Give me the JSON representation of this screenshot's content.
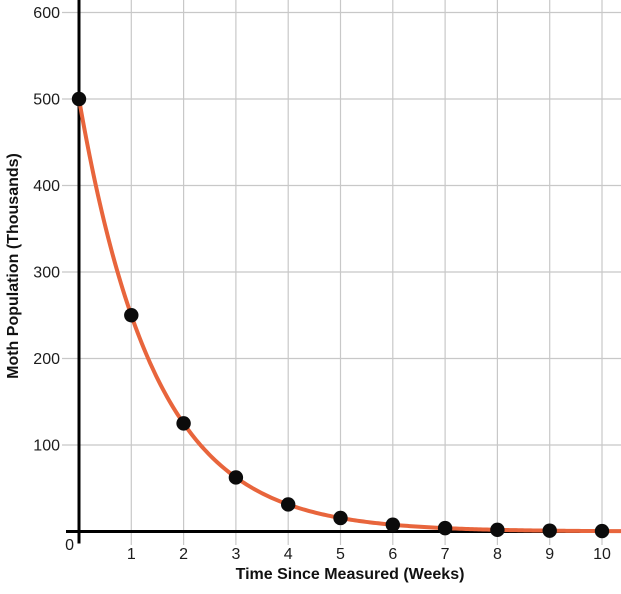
{
  "chart_data": {
    "type": "line",
    "title": "",
    "xlabel": "Time Since Measured (Weeks)",
    "ylabel": "Moth Population (Thousands)",
    "x": [
      0,
      1,
      2,
      3,
      4,
      5,
      6,
      7,
      8,
      9,
      10
    ],
    "y": [
      500,
      250,
      125,
      62.5,
      31.25,
      15.63,
      7.81,
      3.91,
      1.95,
      0.98,
      0.49
    ],
    "curve": {
      "kind": "exponential-decay",
      "initial_value": 500,
      "decay_ratio_per_week": 0.5
    },
    "x_tick_labels": [
      "1",
      "2",
      "3",
      "4",
      "5",
      "6",
      "7",
      "8",
      "9",
      "10"
    ],
    "x_tick_values": [
      1,
      2,
      3,
      4,
      5,
      6,
      7,
      8,
      9,
      10
    ],
    "y_tick_labels": [
      "100",
      "200",
      "300",
      "400",
      "500",
      "600"
    ],
    "y_tick_values": [
      100,
      200,
      300,
      400,
      500,
      600
    ],
    "origin_label": "0",
    "xlim": [
      0,
      10.36
    ],
    "ylim": [
      0,
      614
    ],
    "grid": true,
    "legend": "none",
    "colors": {
      "curve": "#e8653c",
      "points": "#0b0b0b",
      "axis": "#000000",
      "grid": "#c8c8c8",
      "text": "#1c1c1c"
    }
  }
}
